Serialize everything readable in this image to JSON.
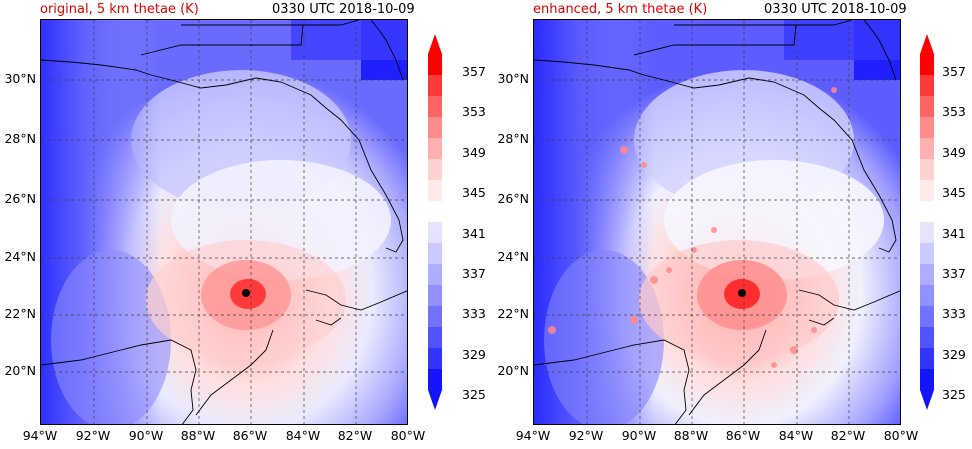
{
  "panels": [
    {
      "title_left": "original, 5 km thetae (K)",
      "title_right": "0330 UTC 2018-10-09"
    },
    {
      "title_left": "enhanced, 5 km thetae (K)",
      "title_right": "0330 UTC 2018-10-09"
    }
  ],
  "lat_labels": [
    "30°N",
    "28°N",
    "26°N",
    "24°N",
    "22°N",
    "20°N"
  ],
  "lon_labels": [
    "94°W",
    "92°W",
    "90°W",
    "88°W",
    "86°W",
    "84°W",
    "82°W",
    "80°W"
  ],
  "colorbar": {
    "labels": [
      "357",
      "353",
      "349",
      "345",
      "341",
      "337",
      "333",
      "329",
      "325"
    ],
    "colors": [
      "#ff0000",
      "#ff3a3a",
      "#ff6464",
      "#ff8c8c",
      "#ffb0b0",
      "#ffd2d2",
      "#ffeaea",
      "#ffffff",
      "#e4e4ff",
      "#cacaff",
      "#aeaeff",
      "#9090ff",
      "#7272ff",
      "#5252ff",
      "#3434ff",
      "#1414ff"
    ]
  },
  "map_colors": {
    "ocean_deep": "#3a3aff",
    "ocean_mid": "#7272ff",
    "light": "#d8d8ff",
    "white": "#ffffff",
    "pink": "#ffb0b0",
    "red": "#ff6060"
  }
}
